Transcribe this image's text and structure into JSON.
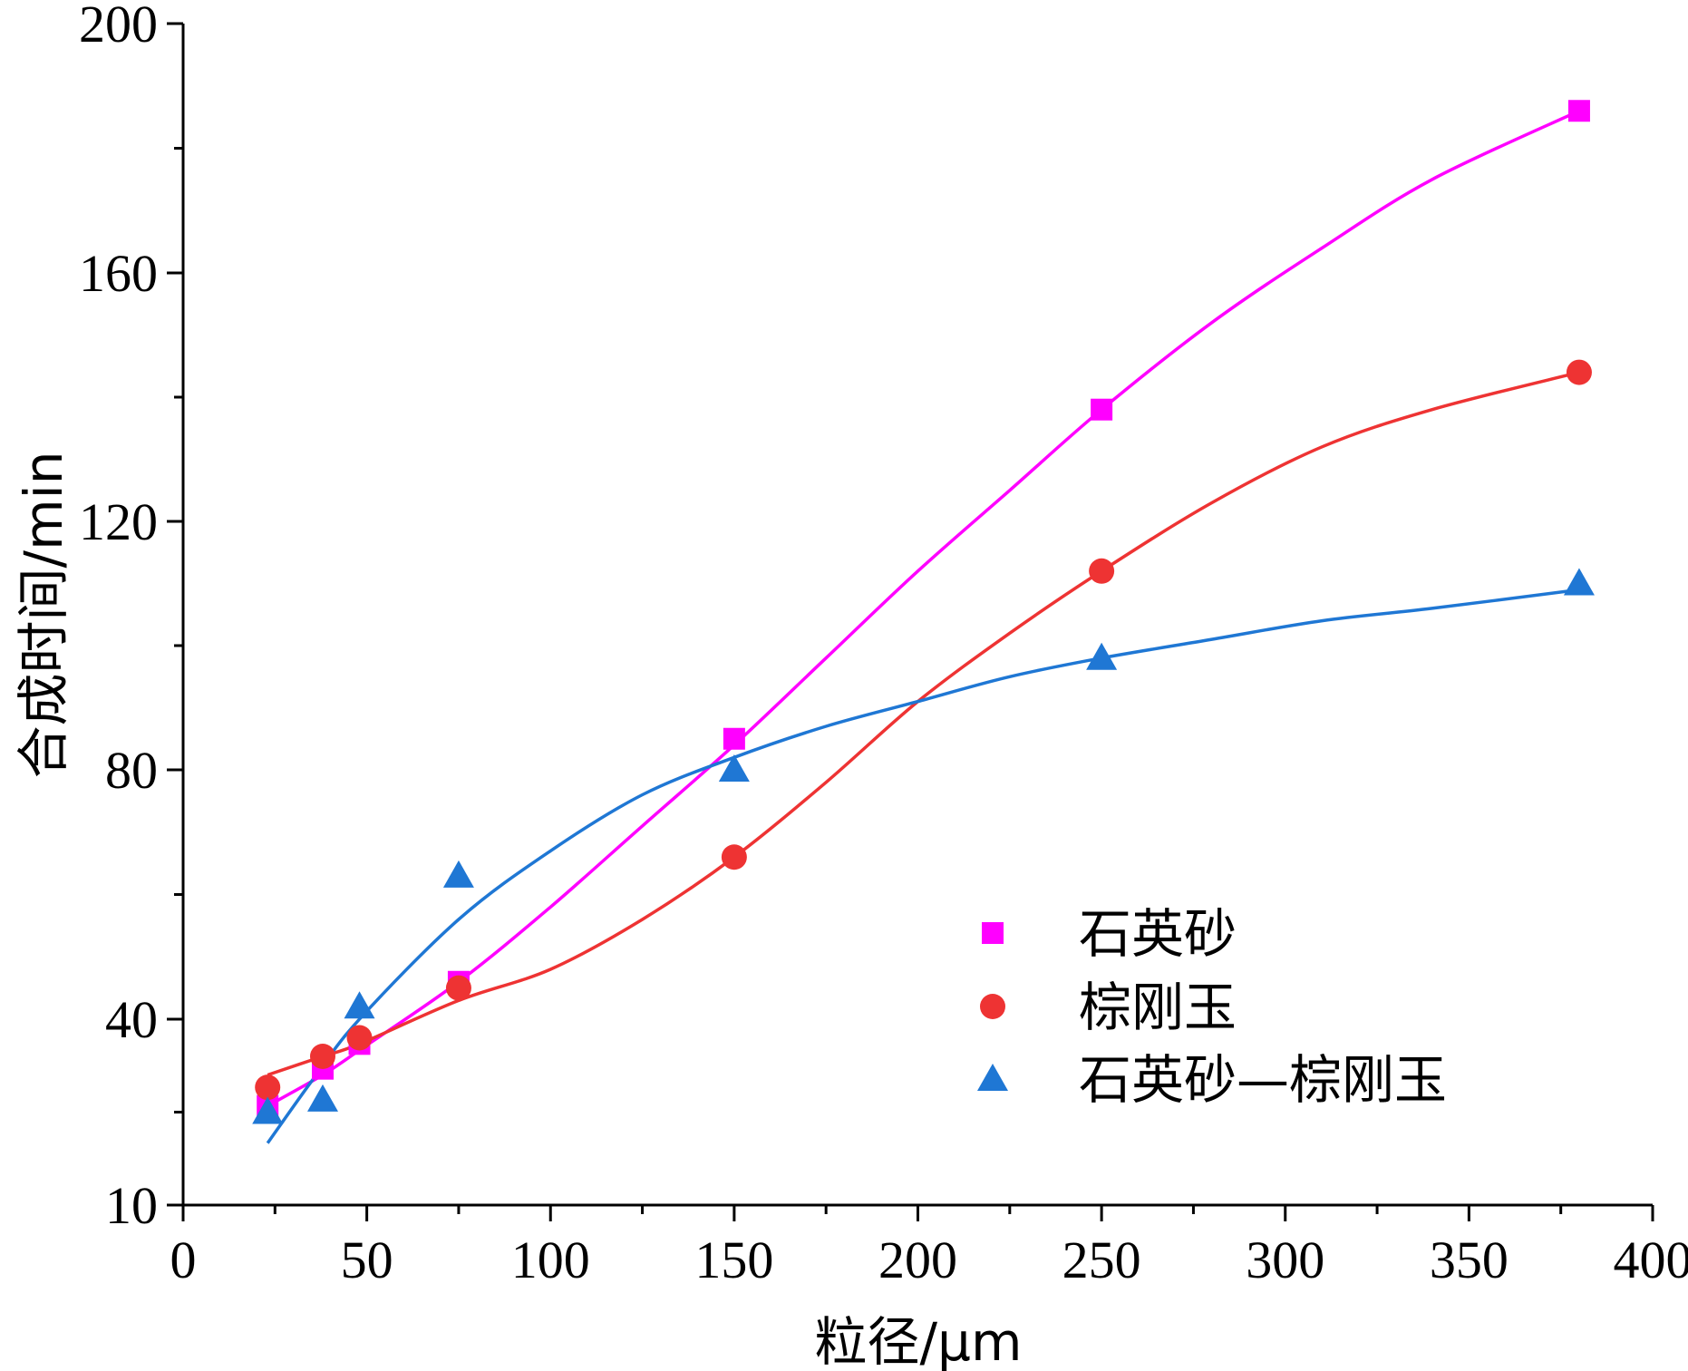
{
  "chart_data": {
    "type": "scatter",
    "title": "",
    "xlabel": "粒径/μm",
    "ylabel": "合成时间/min",
    "xlim": [
      0,
      400
    ],
    "ylim": [
      10,
      200
    ],
    "xticks": [
      0,
      50,
      100,
      150,
      200,
      250,
      300,
      350,
      400
    ],
    "yticks": [
      10,
      40,
      80,
      120,
      160,
      200
    ],
    "grid": false,
    "legend_position": "bottom-right",
    "series": [
      {
        "name": "石英砂",
        "marker": "square",
        "color": "#ff00ff",
        "x": [
          23,
          38,
          48,
          75,
          150,
          250,
          380
        ],
        "y": [
          26,
          32,
          36,
          46,
          85,
          138,
          186
        ],
        "fit": [
          [
            23,
            26
          ],
          [
            38,
            31
          ],
          [
            48,
            35
          ],
          [
            75,
            46
          ],
          [
            100,
            58
          ],
          [
            125,
            71
          ],
          [
            150,
            84
          ],
          [
            175,
            98
          ],
          [
            200,
            112
          ],
          [
            225,
            125
          ],
          [
            250,
            138
          ],
          [
            280,
            152
          ],
          [
            310,
            164
          ],
          [
            340,
            175
          ],
          [
            380,
            186
          ]
        ]
      },
      {
        "name": "棕刚玉",
        "marker": "circle",
        "color": "#ee3333",
        "x": [
          23,
          38,
          48,
          75,
          150,
          250,
          380
        ],
        "y": [
          29,
          34,
          37,
          45,
          66,
          112,
          144
        ],
        "fit": [
          [
            23,
            31
          ],
          [
            38,
            34
          ],
          [
            48,
            36
          ],
          [
            75,
            43
          ],
          [
            100,
            48
          ],
          [
            125,
            56
          ],
          [
            150,
            66
          ],
          [
            175,
            78
          ],
          [
            200,
            91
          ],
          [
            225,
            102
          ],
          [
            250,
            112
          ],
          [
            280,
            123
          ],
          [
            310,
            132
          ],
          [
            340,
            138
          ],
          [
            380,
            144
          ]
        ]
      },
      {
        "name": "石英砂—棕刚玉",
        "marker": "triangle",
        "color": "#1f77d4",
        "x": [
          23,
          38,
          48,
          75,
          150,
          250,
          380
        ],
        "y": [
          25,
          27,
          42,
          63,
          80,
          98,
          110
        ],
        "fit": [
          [
            23,
            20
          ],
          [
            35,
            30
          ],
          [
            48,
            40
          ],
          [
            75,
            56
          ],
          [
            100,
            67
          ],
          [
            125,
            76
          ],
          [
            150,
            82
          ],
          [
            175,
            87
          ],
          [
            200,
            91
          ],
          [
            225,
            95
          ],
          [
            250,
            98
          ],
          [
            280,
            101
          ],
          [
            310,
            104
          ],
          [
            340,
            106
          ],
          [
            380,
            109
          ]
        ]
      }
    ]
  }
}
